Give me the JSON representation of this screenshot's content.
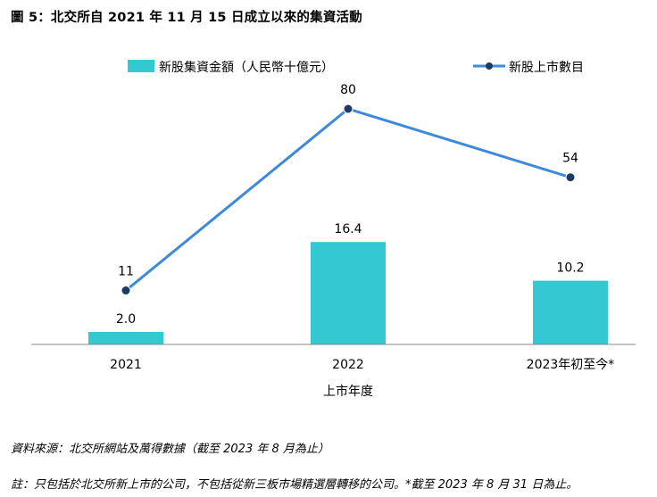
{
  "chart_data": {
    "type": "bar+line",
    "title": "圖 5：北交所自 2021 年 11 月 15 日成立以來的集資活動",
    "categories": [
      "2021",
      "2022",
      "2023年初至今*"
    ],
    "xlabel": "上市年度",
    "series": [
      {
        "name": "新股集資金額（人民幣十億元）",
        "type": "bar",
        "color": "#33C8D2",
        "values": [
          2.0,
          16.4,
          10.2
        ],
        "labels": [
          "2.0",
          "16.4",
          "10.2"
        ]
      },
      {
        "name": "新股上市數目",
        "type": "line",
        "color": "#3E8AD8",
        "marker_color": "#1F3A66",
        "values": [
          11,
          80,
          54
        ],
        "labels": [
          "11",
          "80",
          "54"
        ]
      }
    ],
    "legend_position": "top",
    "grid": false
  },
  "source": "資料來源：北交所網站及萬得數據（截至 2023 年 8 月為止）",
  "footnote": "註：只包括於北交所新上市的公司，不包括從新三板市場精選層轉移的公司。*截至 2023 年 8 月 31 日為止。"
}
